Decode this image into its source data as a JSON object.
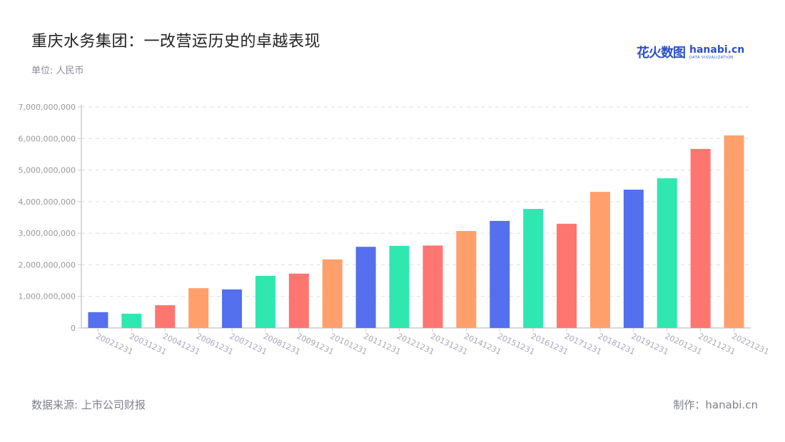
{
  "header": {
    "title": "重庆水务集团：一改营运历史的卓越表现",
    "unit": "单位: 人民币"
  },
  "logo": {
    "cn": "花火数图",
    "en": "hanabi.cn",
    "sub": "DATA VISUALIZATION"
  },
  "footer": {
    "source": "数据来源: 上市公司财报",
    "credit": "制作：hanabi.cn"
  },
  "colors": {
    "palette": [
      "#5470ee",
      "#2ee8b0",
      "#ff7570",
      "#ffa06c"
    ],
    "grid": "#dddddd",
    "axis": "#cccccc",
    "tick_label": "#999999",
    "x_label": "#a8a8b8"
  },
  "chart_data": {
    "type": "bar",
    "title": "重庆水务集团：一改营运历史的卓越表现",
    "subtitle": "单位: 人民币",
    "xlabel": "",
    "ylabel": "",
    "ylim": [
      0,
      7000000000
    ],
    "yticks": [
      0,
      1000000000,
      2000000000,
      3000000000,
      4000000000,
      5000000000,
      6000000000,
      7000000000
    ],
    "ytick_labels": [
      "0",
      "1,000,000,000",
      "2,000,000,000",
      "3,000,000,000",
      "4,000,000,000",
      "5,000,000,000",
      "6,000,000,000",
      "7,000,000,000"
    ],
    "grid": true,
    "legend": "none",
    "categories": [
      "20021231",
      "20031231",
      "20041231",
      "20061231",
      "20071231",
      "20081231",
      "20091231",
      "20101231",
      "20111231",
      "20121231",
      "20131231",
      "20141231",
      "20151231",
      "20161231",
      "20171231",
      "20181231",
      "20191231",
      "20201231",
      "20211231",
      "20221231"
    ],
    "values": [
      500000000,
      450000000,
      720000000,
      1260000000,
      1220000000,
      1650000000,
      1720000000,
      2170000000,
      2570000000,
      2600000000,
      2610000000,
      3070000000,
      3390000000,
      3770000000,
      3300000000,
      4310000000,
      4380000000,
      4740000000,
      5670000000,
      6100000000
    ],
    "bar_colors": [
      "#5470ee",
      "#2ee8b0",
      "#ff7570",
      "#ffa06c",
      "#5470ee",
      "#2ee8b0",
      "#ff7570",
      "#ffa06c",
      "#5470ee",
      "#2ee8b0",
      "#ff7570",
      "#ffa06c",
      "#5470ee",
      "#2ee8b0",
      "#ff7570",
      "#ffa06c",
      "#5470ee",
      "#2ee8b0",
      "#ff7570",
      "#ffa06c"
    ]
  }
}
